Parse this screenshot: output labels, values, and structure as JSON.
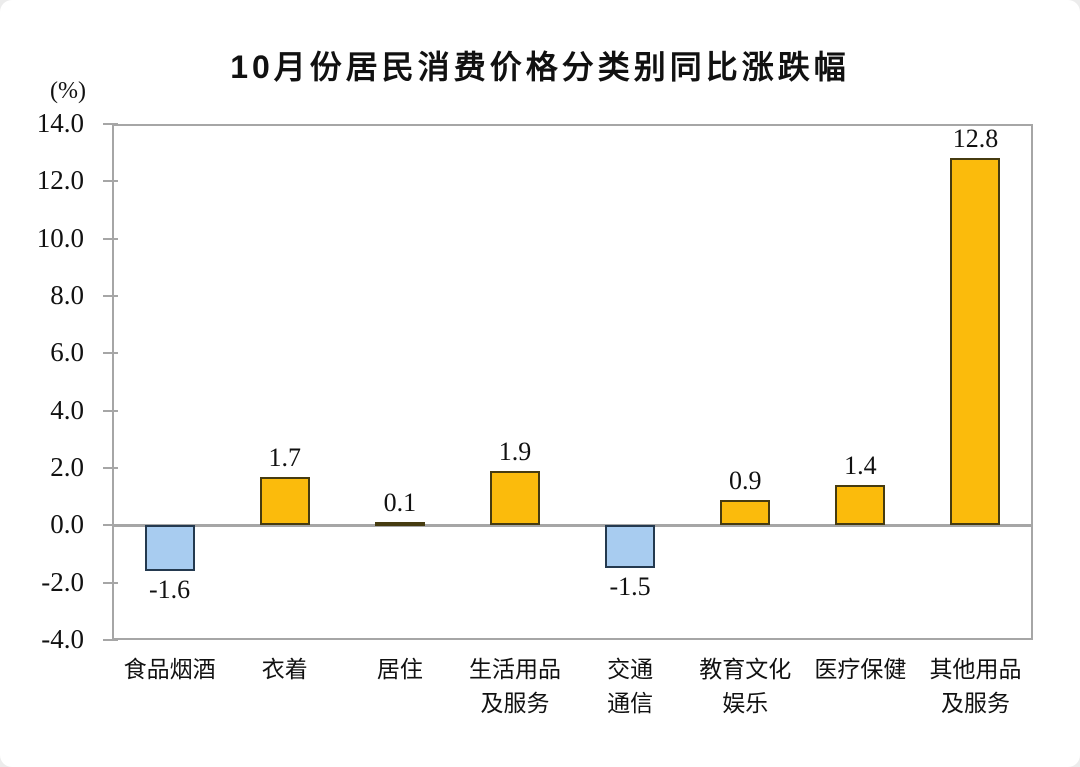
{
  "chart_data": {
    "type": "bar",
    "title": "10月份居民消费价格分类别同比涨跌幅",
    "unit_label": "(%)",
    "categories": [
      "食品烟酒",
      "衣着",
      "居住",
      "生活用品\n及服务",
      "交通\n通信",
      "教育文化\n娱乐",
      "医疗保健",
      "其他用品\n及服务"
    ],
    "values": [
      -1.6,
      1.7,
      0.1,
      1.9,
      -1.5,
      0.9,
      1.4,
      12.8
    ],
    "value_labels": [
      "-1.6",
      "1.7",
      "0.1",
      "1.9",
      "-1.5",
      "0.9",
      "1.4",
      "12.8"
    ],
    "xlabel": "",
    "ylabel": "(%)",
    "ylim": [
      -4.0,
      14.0
    ],
    "ytick_step": 2.0,
    "yticks": [
      "14.0",
      "12.0",
      "10.0",
      "8.0",
      "6.0",
      "4.0",
      "2.0",
      "0.0",
      "-2.0",
      "-4.0"
    ],
    "grid": false,
    "legend": "none",
    "colors": {
      "positive_fill": "#FBBB0C",
      "positive_border": "#463B10",
      "negative_fill": "#A8CCF0",
      "negative_border": "#24394F",
      "axis": "#A6A6A6",
      "text": "#111111"
    }
  }
}
